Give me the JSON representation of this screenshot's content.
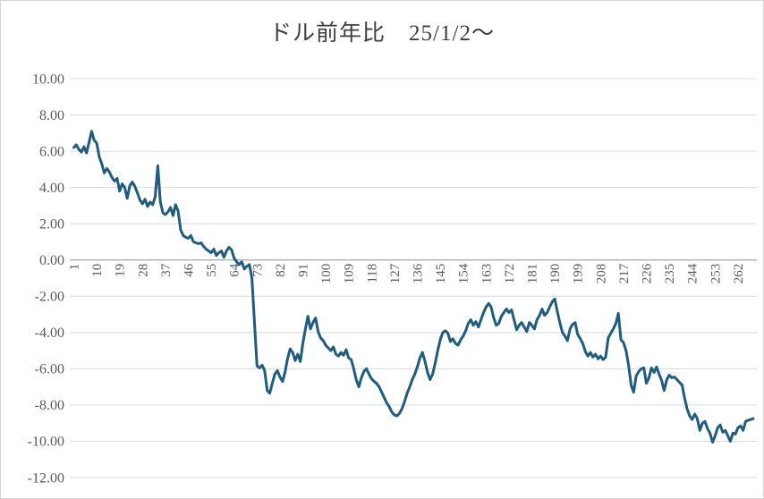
{
  "chart": {
    "title": "ドル前年比　25/1/2～"
  },
  "chart_data": {
    "type": "line",
    "title": "ドル前年比　25/1/2～",
    "xlabel": "",
    "ylabel": "",
    "ylim": [
      -12,
      10
    ],
    "y_tick_interval": 2,
    "y_tick_labels": [
      "10.00",
      "8.00",
      "6.00",
      "4.00",
      "2.00",
      "0.00",
      "-2.00",
      "-4.00",
      "-6.00",
      "-8.00",
      "-10.00",
      "-12.00"
    ],
    "x_start": 1,
    "x_tick_step": 9,
    "x_tick_labels": [
      "1",
      "10",
      "19",
      "28",
      "37",
      "46",
      "55",
      "64",
      "73",
      "82",
      "91",
      "100",
      "109",
      "118",
      "127",
      "136",
      "145",
      "154",
      "163",
      "172",
      "181",
      "190",
      "199",
      "208",
      "217",
      "226",
      "235",
      "244",
      "253",
      "262"
    ],
    "x_tick_labels_rotated_degrees": -90,
    "grid": true,
    "legend_position": "none",
    "colors": {
      "line": "#1F5C7E",
      "grid": "#D9D9D9",
      "zero_axis": "#A6A6A6",
      "labels": "#595959",
      "title": "#3F3F3F",
      "background": "#FFFFFF",
      "border": "#D5D5D5"
    },
    "series": [
      {
        "name": "",
        "values": [
          6.2,
          6.35,
          6.1,
          5.95,
          6.25,
          5.9,
          6.5,
          7.1,
          6.6,
          6.45,
          5.7,
          5.3,
          4.8,
          5.05,
          4.85,
          4.55,
          4.35,
          4.5,
          3.8,
          4.2,
          4.0,
          3.4,
          4.1,
          4.3,
          4.05,
          3.7,
          3.3,
          3.1,
          3.35,
          2.95,
          3.2,
          3.05,
          3.5,
          5.2,
          3.2,
          2.6,
          2.5,
          2.65,
          2.9,
          2.45,
          3.05,
          2.7,
          1.65,
          1.35,
          1.25,
          1.2,
          1.35,
          1.0,
          0.95,
          0.9,
          0.95,
          0.75,
          0.6,
          0.5,
          0.4,
          0.6,
          0.25,
          0.4,
          0.5,
          0.15,
          0.5,
          0.7,
          0.55,
          0.1,
          -0.1,
          -0.25,
          -0.1,
          -0.5,
          -0.35,
          -0.25,
          -1.0,
          -3.5,
          -5.85,
          -5.95,
          -5.8,
          -6.1,
          -7.2,
          -7.35,
          -6.8,
          -6.3,
          -6.1,
          -6.45,
          -6.7,
          -6.2,
          -5.45,
          -4.9,
          -5.1,
          -5.55,
          -5.2,
          -5.6,
          -4.6,
          -3.8,
          -3.1,
          -3.8,
          -3.45,
          -3.2,
          -3.95,
          -4.3,
          -4.45,
          -4.7,
          -4.85,
          -5.0,
          -4.8,
          -5.2,
          -5.3,
          -5.1,
          -5.25,
          -4.95,
          -5.4,
          -5.5,
          -6.0,
          -6.6,
          -7.0,
          -6.5,
          -6.15,
          -6.0,
          -6.3,
          -6.55,
          -6.7,
          -6.8,
          -7.0,
          -7.3,
          -7.6,
          -7.9,
          -8.1,
          -8.4,
          -8.55,
          -8.6,
          -8.45,
          -8.2,
          -7.8,
          -7.35,
          -7.0,
          -6.6,
          -6.3,
          -5.9,
          -5.4,
          -5.1,
          -5.6,
          -6.2,
          -6.6,
          -6.3,
          -5.7,
          -5.0,
          -4.4,
          -4.0,
          -3.9,
          -4.05,
          -4.5,
          -4.35,
          -4.6,
          -4.7,
          -4.4,
          -4.2,
          -3.9,
          -3.5,
          -3.3,
          -3.6,
          -3.4,
          -3.7,
          -3.3,
          -2.9,
          -2.6,
          -2.4,
          -2.6,
          -3.2,
          -3.6,
          -3.5,
          -3.1,
          -2.9,
          -2.7,
          -2.9,
          -2.75,
          -3.3,
          -3.85,
          -3.6,
          -3.45,
          -3.7,
          -3.95,
          -3.45,
          -3.6,
          -3.8,
          -3.3,
          -3.05,
          -2.7,
          -3.05,
          -2.9,
          -2.6,
          -2.3,
          -2.15,
          -2.85,
          -3.45,
          -4.0,
          -4.2,
          -4.45,
          -3.8,
          -3.55,
          -3.45,
          -4.1,
          -4.35,
          -4.6,
          -5.05,
          -5.3,
          -5.1,
          -5.35,
          -5.2,
          -5.45,
          -5.3,
          -5.5,
          -5.35,
          -4.3,
          -4.05,
          -3.8,
          -3.5,
          -2.95,
          -4.4,
          -4.55,
          -5.0,
          -5.8,
          -6.9,
          -7.3,
          -6.4,
          -6.15,
          -6.0,
          -5.95,
          -6.8,
          -6.5,
          -5.95,
          -6.2,
          -5.9,
          -6.3,
          -6.65,
          -7.2,
          -6.6,
          -6.35,
          -6.5,
          -6.45,
          -6.6,
          -6.75,
          -6.9,
          -7.6,
          -8.2,
          -8.6,
          -8.8,
          -8.5,
          -8.75,
          -9.4,
          -9.0,
          -8.9,
          -9.3,
          -9.55,
          -10.05,
          -9.7,
          -9.25,
          -9.1,
          -9.5,
          -9.4,
          -9.7,
          -10.0,
          -9.55,
          -9.6,
          -9.25,
          -9.15,
          -9.4,
          -8.9,
          -8.85,
          -8.8,
          -8.75
        ]
      }
    ]
  }
}
